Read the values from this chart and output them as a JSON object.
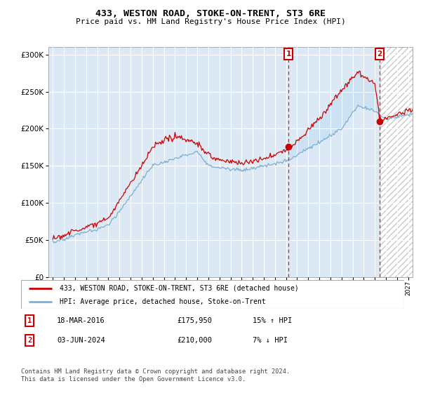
{
  "title": "433, WESTON ROAD, STOKE-ON-TRENT, ST3 6RE",
  "subtitle": "Price paid vs. HM Land Registry's House Price Index (HPI)",
  "bg_color": "#dce9f5",
  "line1_color": "#cc0000",
  "line2_color": "#7bafd4",
  "fill_color": "#dce9f5",
  "hatch_color": "#bbbbbb",
  "ylim_min": 0,
  "ylim_max": 310000,
  "yticks": [
    0,
    50000,
    100000,
    150000,
    200000,
    250000,
    300000
  ],
  "legend_line1": "433, WESTON ROAD, STOKE-ON-TRENT, ST3 6RE (detached house)",
  "legend_line2": "HPI: Average price, detached house, Stoke-on-Trent",
  "table_row1": [
    "1",
    "18-MAR-2016",
    "£175,950",
    "15% ↑ HPI"
  ],
  "table_row2": [
    "2",
    "03-JUN-2024",
    "£210,000",
    "7% ↓ HPI"
  ],
  "footer": "Contains HM Land Registry data © Crown copyright and database right 2024.\nThis data is licensed under the Open Government Licence v3.0.",
  "sale1_x": 2016.21,
  "sale2_x": 2024.42,
  "sale1_price": 175950,
  "sale2_price": 210000,
  "xmin": 1994.6,
  "xmax": 2027.4
}
